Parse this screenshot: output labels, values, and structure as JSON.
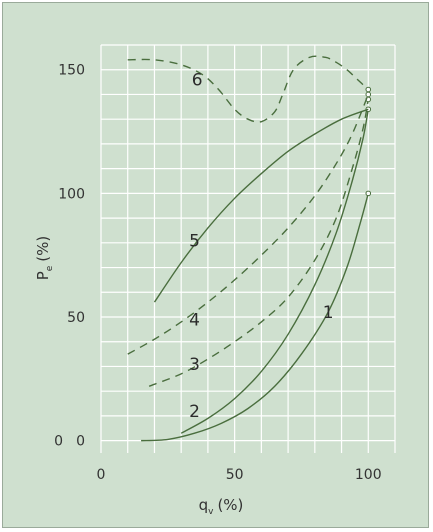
{
  "chart_data": {
    "type": "line",
    "title": "",
    "xlabel": {
      "main": "q",
      "sub": "v",
      "unit": "(%)"
    },
    "ylabel": {
      "main": "P",
      "sub": "e",
      "unit": "(%)"
    },
    "xlim": [
      0,
      110
    ],
    "ylim": [
      -5,
      160
    ],
    "xticks": [
      0,
      50,
      100
    ],
    "yticks": [
      0,
      50,
      100,
      150
    ],
    "grid": true,
    "colors": {
      "background": "#cfe0cf",
      "grid": "#ffffff",
      "curve": "#4a6e3e",
      "text": "#333333"
    },
    "series": [
      {
        "name": "1",
        "style": "solid",
        "end_marker": true,
        "points": [
          [
            15,
            0
          ],
          [
            25,
            0.5
          ],
          [
            35,
            3
          ],
          [
            45,
            7
          ],
          [
            55,
            13
          ],
          [
            65,
            22
          ],
          [
            75,
            35
          ],
          [
            85,
            52
          ],
          [
            92,
            70
          ],
          [
            97,
            88
          ],
          [
            100,
            100
          ]
        ],
        "label_at": [
          85,
          52
        ]
      },
      {
        "name": "2",
        "style": "solid",
        "end_marker": true,
        "points": [
          [
            30,
            3
          ],
          [
            40,
            9
          ],
          [
            50,
            17
          ],
          [
            60,
            28
          ],
          [
            70,
            43
          ],
          [
            80,
            63
          ],
          [
            88,
            84
          ],
          [
            94,
            105
          ],
          [
            98,
            122
          ],
          [
            100,
            134
          ]
        ],
        "label_at": [
          35,
          12
        ]
      },
      {
        "name": "3",
        "style": "dashed",
        "end_marker": true,
        "points": [
          [
            18,
            22
          ],
          [
            30,
            27
          ],
          [
            40,
            33
          ],
          [
            50,
            40
          ],
          [
            60,
            48
          ],
          [
            70,
            58
          ],
          [
            80,
            73
          ],
          [
            88,
            90
          ],
          [
            94,
            110
          ],
          [
            98,
            126
          ],
          [
            100,
            138
          ]
        ],
        "label_at": [
          35,
          31
        ]
      },
      {
        "name": "4",
        "style": "dashed",
        "end_marker": true,
        "points": [
          [
            10,
            35
          ],
          [
            20,
            41
          ],
          [
            30,
            48
          ],
          [
            40,
            56
          ],
          [
            50,
            65
          ],
          [
            60,
            75
          ],
          [
            70,
            86
          ],
          [
            80,
            99
          ],
          [
            88,
            112
          ],
          [
            94,
            124
          ],
          [
            100,
            140
          ]
        ],
        "label_at": [
          35,
          49
        ]
      },
      {
        "name": "5",
        "style": "solid",
        "end_marker": false,
        "points": [
          [
            20,
            56
          ],
          [
            30,
            72
          ],
          [
            40,
            86
          ],
          [
            50,
            98
          ],
          [
            60,
            108
          ],
          [
            70,
            117
          ],
          [
            80,
            124
          ],
          [
            90,
            130
          ],
          [
            100,
            134
          ]
        ],
        "label_at": [
          35,
          81
        ]
      },
      {
        "name": "6",
        "style": "dashed",
        "end_marker": true,
        "points": [
          [
            10,
            154
          ],
          [
            20,
            154
          ],
          [
            30,
            152
          ],
          [
            38,
            148
          ],
          [
            44,
            142
          ],
          [
            50,
            134
          ],
          [
            55,
            130
          ],
          [
            60,
            129
          ],
          [
            65,
            133
          ],
          [
            68,
            140
          ],
          [
            72,
            150
          ],
          [
            78,
            155
          ],
          [
            84,
            155
          ],
          [
            88,
            153
          ],
          [
            92,
            150
          ],
          [
            96,
            146
          ],
          [
            100,
            142
          ]
        ],
        "label_at": [
          36,
          146
        ]
      }
    ]
  }
}
